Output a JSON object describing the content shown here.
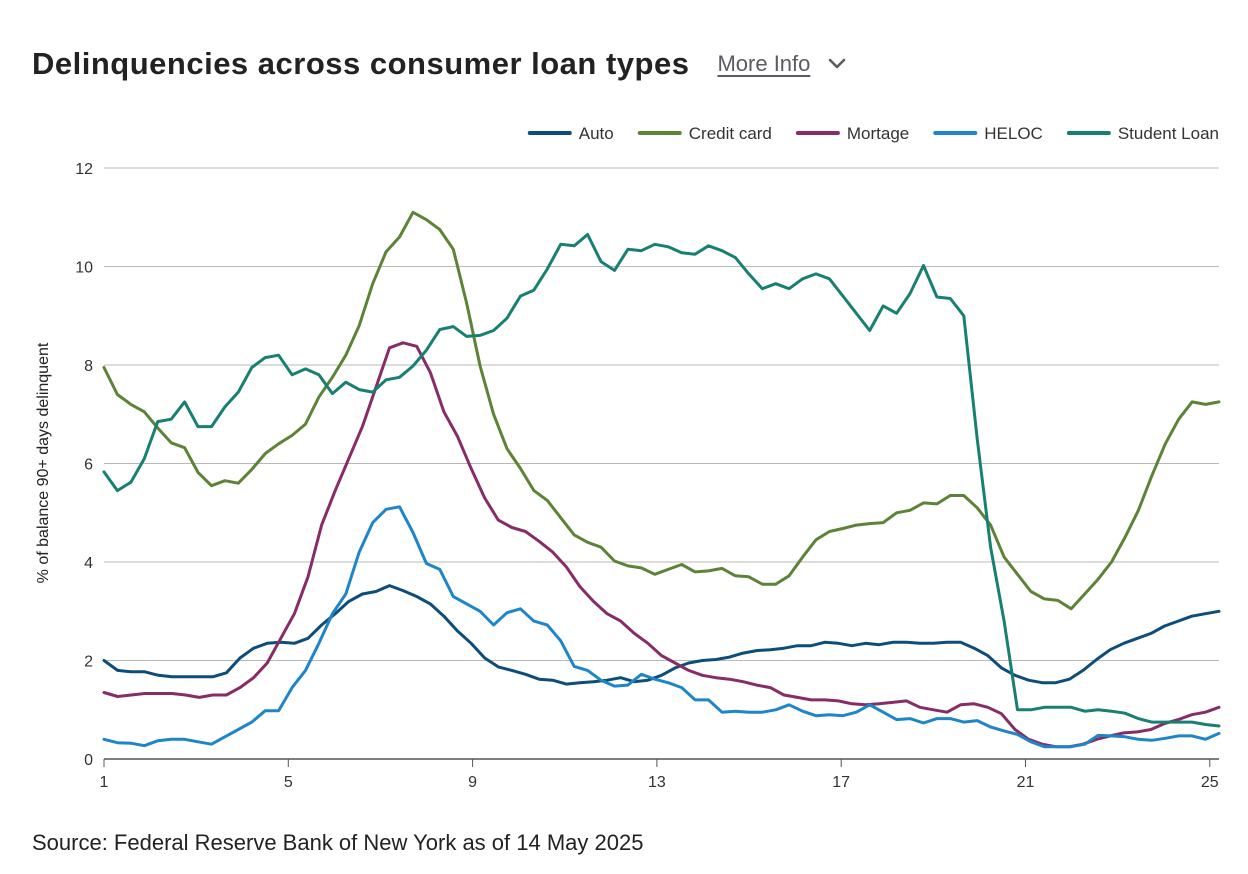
{
  "header": {
    "title": "Delinquencies across consumer loan types",
    "more_info": "More Info"
  },
  "icons": {
    "more_info_icon": "chevron-down-icon"
  },
  "source": "Source: Federal Reserve Bank of New York as of 14 May 2025",
  "chart_data": {
    "type": "line",
    "title": "Delinquencies across consumer loan types",
    "xlabel": "",
    "ylabel": "% of balance 90+ days delinquent",
    "xlim": [
      1,
      25.2
    ],
    "ylim": [
      0,
      12
    ],
    "x_ticks": [
      1,
      5,
      9,
      13,
      17,
      21,
      25
    ],
    "y_ticks": [
      0,
      2,
      4,
      6,
      8,
      10,
      12
    ],
    "grid": "horizontal",
    "legend_position": "top-right",
    "series": [
      {
        "name": "Auto",
        "color": "#0e4d7a",
        "values": [
          2.0,
          1.8,
          1.77,
          1.77,
          1.7,
          1.67,
          1.67,
          1.67,
          1.67,
          1.75,
          2.05,
          2.25,
          2.35,
          2.37,
          2.35,
          2.45,
          2.72,
          2.95,
          3.2,
          3.35,
          3.4,
          3.52,
          3.42,
          3.3,
          3.15,
          2.9,
          2.6,
          2.35,
          2.05,
          1.87,
          1.8,
          1.72,
          1.62,
          1.6,
          1.52,
          1.55,
          1.57,
          1.6,
          1.65,
          1.57,
          1.6,
          1.7,
          1.85,
          1.95,
          2.0,
          2.02,
          2.07,
          2.15,
          2.2,
          2.22,
          2.25,
          2.3,
          2.3,
          2.37,
          2.35,
          2.3,
          2.35,
          2.32,
          2.37,
          2.37,
          2.35,
          2.35,
          2.37,
          2.37,
          2.25,
          2.1,
          1.85,
          1.7,
          1.6,
          1.55,
          1.55,
          1.62,
          1.8,
          2.02,
          2.22,
          2.35,
          2.45,
          2.55,
          2.7,
          2.8,
          2.9,
          2.95,
          3.0
        ]
      },
      {
        "name": "Credit card",
        "color": "#5e8237",
        "values": [
          7.95,
          7.4,
          7.2,
          7.05,
          6.72,
          6.42,
          6.32,
          5.82,
          5.55,
          5.65,
          5.6,
          5.88,
          6.2,
          6.4,
          6.57,
          6.8,
          7.35,
          7.75,
          8.2,
          8.8,
          9.65,
          10.3,
          10.6,
          11.1,
          10.95,
          10.75,
          10.35,
          9.25,
          7.98,
          7.0,
          6.3,
          5.9,
          5.45,
          5.25,
          4.9,
          4.55,
          4.4,
          4.3,
          4.02,
          3.92,
          3.88,
          3.75,
          3.85,
          3.95,
          3.8,
          3.82,
          3.87,
          3.72,
          3.7,
          3.55,
          3.55,
          3.72,
          4.1,
          4.45,
          4.62,
          4.68,
          4.75,
          4.78,
          4.8,
          5.0,
          5.05,
          5.2,
          5.18,
          5.35,
          5.35,
          5.1,
          4.75,
          4.1,
          3.75,
          3.4,
          3.25,
          3.22,
          3.05,
          3.35,
          3.65,
          4.0,
          4.5,
          5.05,
          5.75,
          6.4,
          6.9,
          7.25,
          7.2,
          7.25
        ]
      },
      {
        "name": "Mortage",
        "color": "#862c66",
        "values": [
          1.35,
          1.27,
          1.3,
          1.33,
          1.33,
          1.33,
          1.3,
          1.25,
          1.3,
          1.3,
          1.45,
          1.65,
          1.95,
          2.45,
          2.95,
          3.7,
          4.75,
          5.45,
          6.1,
          6.75,
          7.55,
          8.35,
          8.45,
          8.38,
          7.85,
          7.05,
          6.55,
          5.9,
          5.3,
          4.85,
          4.7,
          4.62,
          4.42,
          4.2,
          3.9,
          3.5,
          3.2,
          2.95,
          2.8,
          2.55,
          2.35,
          2.1,
          1.95,
          1.8,
          1.7,
          1.65,
          1.62,
          1.57,
          1.5,
          1.45,
          1.3,
          1.25,
          1.2,
          1.2,
          1.18,
          1.12,
          1.1,
          1.12,
          1.15,
          1.18,
          1.05,
          1.0,
          0.95,
          1.1,
          1.12,
          1.05,
          0.92,
          0.6,
          0.4,
          0.3,
          0.25,
          0.25,
          0.3,
          0.4,
          0.47,
          0.53,
          0.55,
          0.6,
          0.72,
          0.8,
          0.9,
          0.95,
          1.05
        ]
      },
      {
        "name": "HELOC",
        "color": "#1e86c8",
        "values": [
          0.4,
          0.33,
          0.32,
          0.27,
          0.37,
          0.4,
          0.4,
          0.35,
          0.3,
          0.45,
          0.6,
          0.75,
          0.98,
          0.98,
          1.45,
          1.8,
          2.35,
          2.95,
          3.35,
          4.2,
          4.8,
          5.07,
          5.12,
          4.6,
          3.97,
          3.85,
          3.3,
          3.15,
          3.0,
          2.72,
          2.97,
          3.05,
          2.8,
          2.72,
          2.4,
          1.88,
          1.8,
          1.6,
          1.48,
          1.5,
          1.72,
          1.62,
          1.55,
          1.45,
          1.2,
          1.2,
          0.95,
          0.97,
          0.95,
          0.95,
          1.0,
          1.1,
          0.97,
          0.88,
          0.9,
          0.88,
          0.95,
          1.1,
          0.95,
          0.8,
          0.82,
          0.73,
          0.82,
          0.82,
          0.75,
          0.78,
          0.65,
          0.57,
          0.5,
          0.35,
          0.25,
          0.25,
          0.25,
          0.3,
          0.48,
          0.47,
          0.45,
          0.4,
          0.38,
          0.42,
          0.47,
          0.47,
          0.4,
          0.52
        ]
      },
      {
        "name": "Student Loan",
        "color": "#178070",
        "values": [
          5.83,
          5.45,
          5.62,
          6.1,
          6.85,
          6.9,
          7.25,
          6.75,
          6.75,
          7.15,
          7.45,
          7.95,
          8.15,
          8.2,
          7.8,
          7.92,
          7.8,
          7.42,
          7.65,
          7.5,
          7.45,
          7.7,
          7.75,
          7.98,
          8.3,
          8.72,
          8.78,
          8.58,
          8.6,
          8.7,
          8.95,
          9.4,
          9.52,
          9.95,
          10.45,
          10.42,
          10.65,
          10.1,
          9.92,
          10.35,
          10.32,
          10.45,
          10.4,
          10.28,
          10.25,
          10.42,
          10.32,
          10.18,
          9.85,
          9.55,
          9.65,
          9.55,
          9.75,
          9.85,
          9.75,
          9.4,
          9.05,
          8.7,
          9.2,
          9.05,
          9.45,
          10.02,
          9.38,
          9.35,
          9.0,
          6.5,
          4.3,
          2.8,
          1.0,
          1.0,
          1.05,
          1.05,
          1.05,
          0.97,
          1.0,
          0.97,
          0.93,
          0.82,
          0.75,
          0.75,
          0.75,
          0.75,
          0.7,
          0.67
        ]
      }
    ]
  }
}
